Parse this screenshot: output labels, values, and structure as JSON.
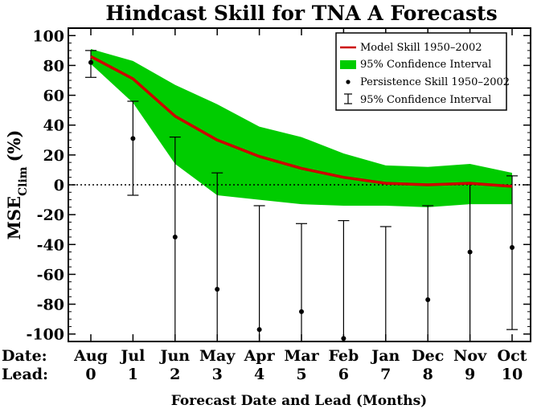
{
  "chart_data": {
    "type": "line",
    "title": "Hindcast Skill for TNA A Forecasts",
    "xlabel": "Forecast Date and Lead (Months)",
    "ylabel": "MSE",
    "ylabel_subscript": "Clim",
    "ylabel_unit": "(%)",
    "row_labels": {
      "date": "Date:",
      "lead": "Lead:"
    },
    "categories": [
      "Aug",
      "Jul",
      "Jun",
      "May",
      "Apr",
      "Mar",
      "Feb",
      "Jan",
      "Dec",
      "Nov",
      "Oct"
    ],
    "leads": [
      "0",
      "1",
      "2",
      "3",
      "4",
      "5",
      "6",
      "7",
      "8",
      "9",
      "10"
    ],
    "ylim": [
      -105,
      105
    ],
    "yticks": [
      100,
      80,
      60,
      40,
      20,
      0,
      -20,
      -40,
      -60,
      -80,
      -100
    ],
    "grid": false,
    "zero_line": "dotted",
    "legend_position": "top-right",
    "series": [
      {
        "name": "Model Skill 1950–2002",
        "kind": "line",
        "color": "#cc0000",
        "values": [
          86,
          71,
          46,
          30,
          19,
          11,
          5,
          1,
          0,
          1,
          -1
        ]
      },
      {
        "name": "95% Confidence Interval",
        "kind": "band",
        "color": "#00cc00",
        "upper": [
          91,
          83,
          67,
          54,
          39,
          32,
          21,
          13,
          12,
          14,
          8
        ],
        "lower": [
          81,
          55,
          14,
          -7,
          -10,
          -13,
          -14,
          -14,
          -15,
          -13,
          -13
        ]
      },
      {
        "name": "Persistence Skill 1950–2002",
        "kind": "points",
        "color": "#000000",
        "values": [
          82,
          31,
          -35,
          -70,
          -97,
          -85,
          -103,
          null,
          -77,
          -45,
          -42
        ]
      },
      {
        "name": "95% Confidence Interval",
        "kind": "errorbars",
        "color": "#000000",
        "upper": [
          90,
          56,
          32,
          8,
          -14,
          -26,
          -24,
          -28,
          -14,
          1,
          6
        ],
        "lower": [
          72,
          -7,
          -105,
          -105,
          -105,
          -105,
          -105,
          -105,
          -105,
          -105,
          -97
        ]
      }
    ]
  }
}
